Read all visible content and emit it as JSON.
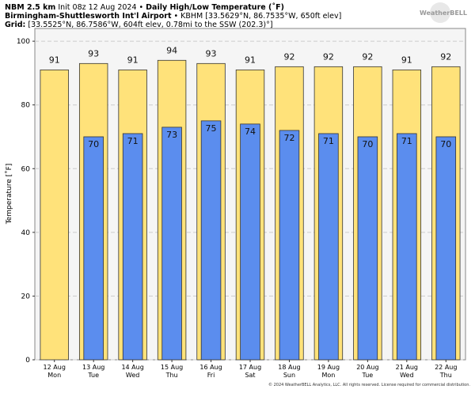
{
  "header": {
    "line1": {
      "model": "NBM 2.5 km",
      "init": "Init 08z 12 Aug 2024 •",
      "product": "Daily High/Low Temperature (˚F)"
    },
    "line2": {
      "station": "Birmingham-Shuttlesworth Int'l Airport",
      "info": "• KBHM [33.5629°N, 86.7535°W, 650ft elev]"
    },
    "line3": {
      "label": "Grid:",
      "info": "[33.5525°N, 86.7586°W, 604ft elev, 0.78mi to the SSW (202.3)°]"
    },
    "logo": "WeatherBELL"
  },
  "footer": "© 2024 WeatherBELL Analytics, LLC. All rights reserved. License required for commercial distribution.",
  "chart_data": {
    "type": "bar",
    "y_label": "Temperature [˚F]",
    "categories": [
      "12 Aug",
      "13 Aug",
      "14 Aug",
      "15 Aug",
      "16 Aug",
      "17 Aug",
      "18 Aug",
      "19 Aug",
      "20 Aug",
      "21 Aug",
      "22 Aug"
    ],
    "weekdays": [
      "Mon",
      "Tue",
      "Wed",
      "Thu",
      "Fri",
      "Sat",
      "Sun",
      "Mon",
      "Tue",
      "Wed",
      "Thu"
    ],
    "series": [
      {
        "name": "High",
        "color": "#ffe27a",
        "values": [
          91,
          93,
          91,
          94,
          93,
          91,
          92,
          92,
          92,
          91,
          92
        ]
      },
      {
        "name": "Low",
        "color": "#5b8dee",
        "values": [
          null,
          70,
          71,
          73,
          75,
          74,
          72,
          71,
          70,
          71,
          70
        ]
      }
    ],
    "ylim": [
      0,
      104
    ],
    "yticks": [
      0,
      20,
      40,
      60,
      80,
      100
    ],
    "grid": true
  }
}
